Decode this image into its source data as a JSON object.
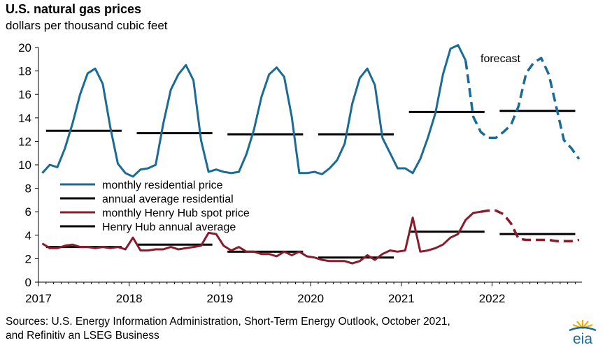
{
  "chart_data": {
    "type": "line",
    "title": "U.S. natural gas prices",
    "subtitle": "dollars per thousand  cubic feet",
    "ylim": [
      0,
      20
    ],
    "yticks": [
      0,
      2,
      4,
      6,
      8,
      10,
      12,
      14,
      16,
      18,
      20
    ],
    "xlim": [
      2017.0,
      2022.99
    ],
    "xticks": [
      "2017",
      "2018",
      "2019",
      "2020",
      "2021",
      "2022"
    ],
    "annotation": "forecast",
    "legend": [
      {
        "label": "monthly residential price",
        "color": "#1a6b96"
      },
      {
        "label": "annual average residential",
        "color": "#000000"
      },
      {
        "label": "monthly Henry Hub spot price",
        "color": "#8b1a2b"
      },
      {
        "label": "Henry Hub annual average",
        "color": "#000000"
      }
    ],
    "series": [
      {
        "name": "monthly residential price",
        "color": "#1a6b96",
        "start": "2017-01",
        "forecast_start": "2021-10",
        "values": [
          9.3,
          10.0,
          9.8,
          11.4,
          13.5,
          16.0,
          17.8,
          18.2,
          16.9,
          13.2,
          10.1,
          9.3,
          9.0,
          9.6,
          9.7,
          10.0,
          13.5,
          16.4,
          17.7,
          18.5,
          17.2,
          12.1,
          9.4,
          9.6,
          9.4,
          9.3,
          9.4,
          10.9,
          13.0,
          15.8,
          17.7,
          18.3,
          17.5,
          14.1,
          9.3,
          9.3,
          9.4,
          9.2,
          9.7,
          10.4,
          11.8,
          15.2,
          17.4,
          18.2,
          16.8,
          12.3,
          11.0,
          9.7,
          9.7,
          9.3,
          10.5,
          12.3,
          14.4,
          17.7,
          19.9,
          20.2,
          18.9,
          14.1,
          12.8,
          12.3,
          12.3,
          12.8,
          13.4,
          15.0,
          17.8,
          18.7,
          19.1,
          17.7,
          14.9,
          12.1,
          11.4,
          10.5
        ]
      },
      {
        "name": "monthly Henry Hub spot price",
        "color": "#8b1a2b",
        "start": "2017-01",
        "forecast_start": "2021-12",
        "values": [
          3.3,
          2.9,
          2.9,
          3.1,
          3.2,
          3.0,
          3.0,
          2.9,
          3.0,
          2.9,
          3.0,
          2.8,
          3.8,
          2.7,
          2.7,
          2.8,
          2.8,
          3.0,
          2.8,
          2.9,
          3.0,
          3.1,
          4.2,
          4.1,
          3.1,
          2.7,
          3.0,
          2.6,
          2.6,
          2.4,
          2.4,
          2.2,
          2.6,
          2.3,
          2.6,
          2.2,
          2.1,
          1.9,
          1.8,
          1.8,
          1.8,
          1.6,
          1.8,
          2.3,
          1.9,
          2.4,
          2.7,
          2.6,
          2.7,
          5.5,
          2.6,
          2.7,
          2.9,
          3.2,
          3.8,
          4.1,
          5.3,
          5.9,
          6.0,
          6.1,
          6.1,
          5.8,
          5.0,
          3.7,
          3.6,
          3.6,
          3.6,
          3.6,
          3.5,
          3.5,
          3.5,
          3.6
        ]
      }
    ],
    "annual_averages": [
      {
        "name": "annual average residential",
        "values": [
          12.9,
          12.7,
          12.6,
          12.6,
          14.5,
          14.6
        ]
      },
      {
        "name": "Henry Hub annual average",
        "values": [
          3.0,
          3.2,
          2.6,
          2.1,
          4.3,
          4.1
        ]
      }
    ]
  },
  "footer": {
    "source_line1": "Sources: U.S. Energy Information Administration, Short-Term Energy Outlook, October 2021,",
    "source_line2": "and Refinitiv an LSEG Business",
    "logo_text": "eia"
  }
}
